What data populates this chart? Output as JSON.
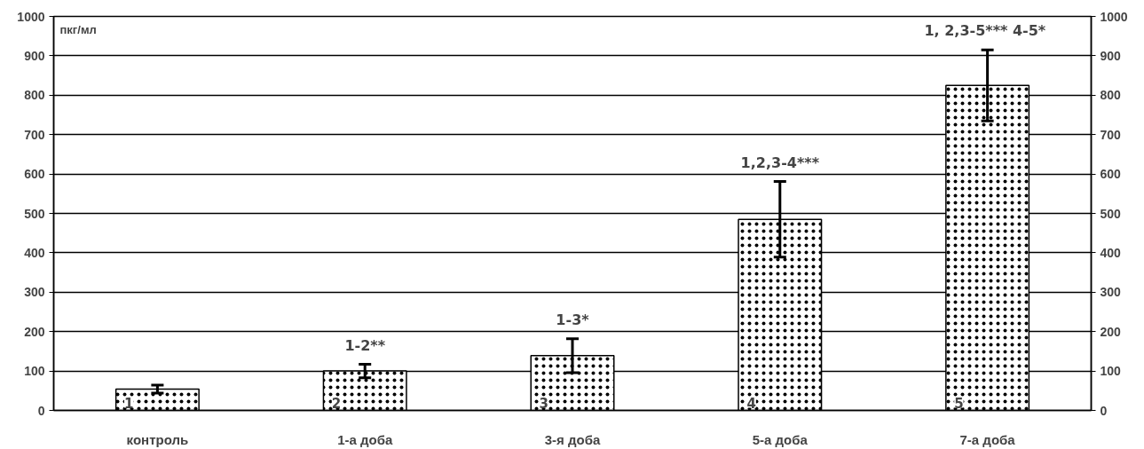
{
  "chart_data": {
    "type": "bar",
    "ylabel": "пкг/мл",
    "categories": [
      "контроль",
      "1-а доба",
      "3-я доба",
      "5-а доба",
      "7-а доба"
    ],
    "series": [
      {
        "color": "#ffffff",
        "values": [
          54,
          100,
          139,
          485,
          825
        ],
        "errors": [
          10,
          17,
          43,
          96,
          90
        ]
      }
    ],
    "ylim": [
      0,
      1000
    ],
    "yticks": [
      0,
      100,
      200,
      300,
      400,
      500,
      600,
      700,
      800,
      900,
      1000
    ],
    "y2lim": [
      0,
      1000
    ],
    "y2ticks": [
      0,
      100,
      200,
      300,
      400,
      500,
      600,
      700,
      800,
      900,
      1000
    ],
    "grid": "y",
    "annotations": [
      {
        "text": "1",
        "x": "контроль",
        "y": 0
      },
      {
        "text": "2",
        "x": "1-а доба",
        "y": 0
      },
      {
        "text": "3",
        "x": "3-я доба",
        "y": 0
      },
      {
        "text": "4",
        "x": "5-а доба",
        "y": 0
      },
      {
        "text": "5",
        "x": "7-а доба",
        "y": 0
      },
      {
        "text": "1-2**",
        "x": "1-а доба",
        "y": 117
      },
      {
        "text": "1-3*",
        "x": "3-я доба",
        "y": 182
      },
      {
        "text": "1,2,3-4***",
        "x": "5-а доба",
        "y": 581
      },
      {
        "text": "1, 2,3-5***  4-5*",
        "x": "7-а доба",
        "y": 915
      }
    ]
  }
}
